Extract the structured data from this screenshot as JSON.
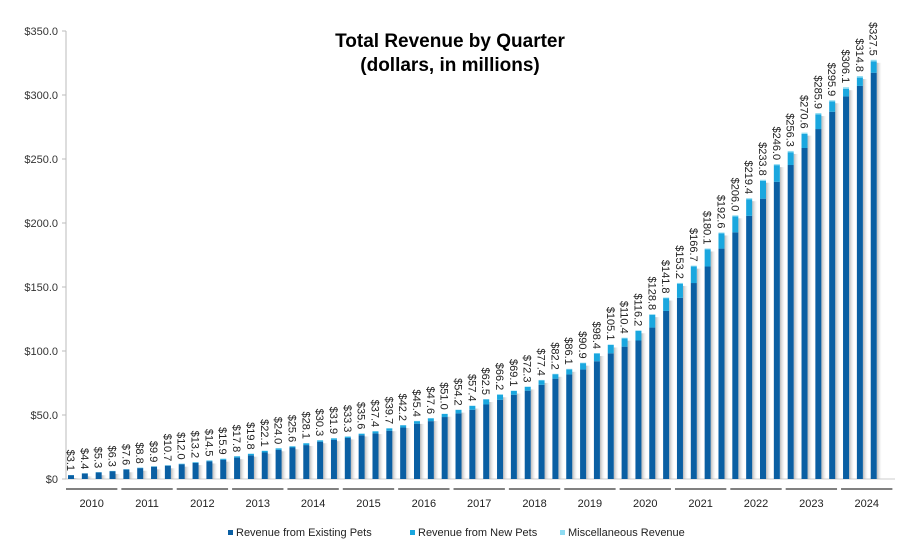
{
  "chart_data": {
    "type": "bar",
    "stacked": true,
    "title": "Total Revenue by Quarter",
    "subtitle": "(dollars, in millions)",
    "xlabel": "",
    "ylabel": "",
    "ylim": [
      0,
      350
    ],
    "yticks": [
      "$0",
      "$50.0",
      "$100.0",
      "$150.0",
      "$200.0",
      "$250.0",
      "$300.0",
      "$350.0"
    ],
    "grid": false,
    "legend": "bottom",
    "years": [
      "2010",
      "2011",
      "2012",
      "2013",
      "2014",
      "2015",
      "2016",
      "2017",
      "2018",
      "2019",
      "2020",
      "2021",
      "2022",
      "2023",
      "2024"
    ],
    "quarters_per_year": [
      4,
      4,
      4,
      4,
      4,
      4,
      4,
      4,
      4,
      4,
      4,
      4,
      4,
      4,
      3
    ],
    "totals": [
      3.1,
      4.4,
      5.3,
      6.3,
      7.6,
      8.8,
      9.9,
      10.7,
      12.0,
      13.2,
      14.5,
      15.9,
      17.8,
      19.8,
      22.1,
      24.0,
      25.6,
      28.1,
      30.3,
      31.9,
      33.3,
      35.6,
      37.4,
      39.7,
      42.2,
      45.4,
      47.6,
      51.0,
      54.2,
      57.4,
      62.5,
      66.2,
      69.1,
      72.3,
      77.4,
      82.2,
      86.1,
      90.9,
      98.4,
      105.1,
      110.4,
      116.2,
      128.8,
      141.8,
      153.2,
      166.7,
      180.1,
      192.6,
      206.0,
      219.4,
      233.8,
      246.0,
      256.3,
      270.6,
      285.9,
      295.9,
      306.1,
      314.8,
      327.5
    ],
    "series": [
      {
        "name": "Revenue from Existing Pets",
        "color": "#0a5fa3",
        "values": [
          3.0,
          4.3,
          5.1,
          6.1,
          7.4,
          8.5,
          9.6,
          10.4,
          11.5,
          12.6,
          13.8,
          15.0,
          16.7,
          18.5,
          20.7,
          22.8,
          24.6,
          26.5,
          29.1,
          30.6,
          32.1,
          34.2,
          35.7,
          37.7,
          40.2,
          43.2,
          45.2,
          48.4,
          51.3,
          54.1,
          58.2,
          61.9,
          65.8,
          69.0,
          73.6,
          78.4,
          81.7,
          85.5,
          92.0,
          98.2,
          103.4,
          108.2,
          118.3,
          131.3,
          141.6,
          153.1,
          166.0,
          180.0,
          192.7,
          205.6,
          219.0,
          232.2,
          245.3,
          258.6,
          273.4,
          286.9,
          298.9,
          307.1,
          317.4
        ]
      },
      {
        "name": "Revenue from New Pets",
        "color": "#1aa7df",
        "values": [
          0.1,
          0.1,
          0.2,
          0.2,
          0.2,
          0.3,
          0.3,
          0.3,
          0.4,
          0.5,
          0.6,
          0.8,
          1.0,
          1.2,
          1.3,
          1.1,
          0.8,
          1.4,
          1.0,
          1.1,
          1.0,
          1.2,
          1.5,
          1.8,
          1.8,
          2.0,
          2.2,
          2.4,
          2.6,
          3.0,
          4.0,
          4.0,
          3.0,
          3.0,
          3.5,
          3.5,
          4.0,
          5.0,
          6.0,
          6.5,
          6.5,
          7.5,
          10.0,
          10.0,
          11.0,
          13.0,
          13.5,
          12.0,
          12.5,
          13.0,
          14.0,
          13.0,
          10.0,
          11.0,
          11.5,
          8.0,
          6.0,
          6.5,
          8.8
        ]
      },
      {
        "name": "Miscellaneous Revenue",
        "color": "#8fdcf2",
        "values": [
          0,
          0,
          0,
          0,
          0,
          0,
          0,
          0,
          0.1,
          0.1,
          0.1,
          0.1,
          0.1,
          0.1,
          0.1,
          0.1,
          0.2,
          0.2,
          0.2,
          0.2,
          0.2,
          0.2,
          0.2,
          0.2,
          0.2,
          0.2,
          0.2,
          0.2,
          0.3,
          0.3,
          0.3,
          0.3,
          0.3,
          0.3,
          0.3,
          0.3,
          0.4,
          0.4,
          0.4,
          0.4,
          0.5,
          0.5,
          0.5,
          0.5,
          0.6,
          0.6,
          0.6,
          0.6,
          0.8,
          0.8,
          0.8,
          0.8,
          1.0,
          1.0,
          1.0,
          1.0,
          1.2,
          1.2,
          1.3
        ]
      }
    ]
  }
}
